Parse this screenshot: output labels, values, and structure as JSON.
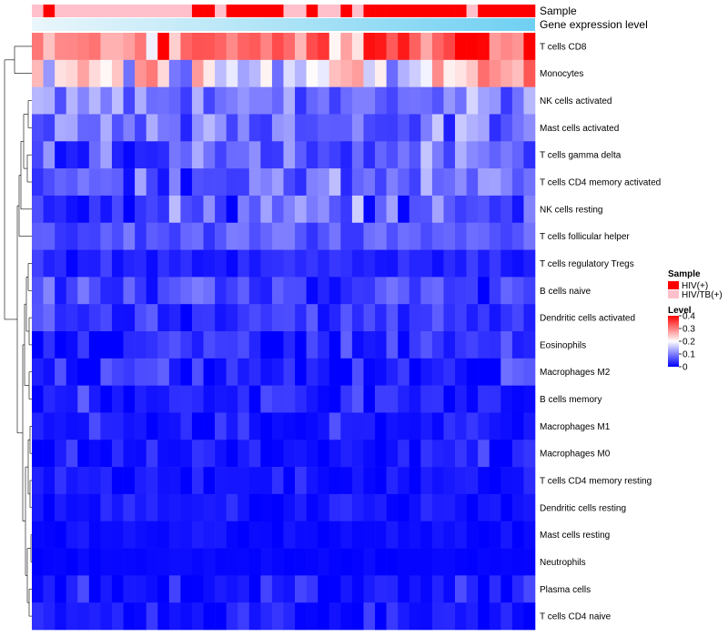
{
  "chart_data": {
    "type": "heatmap",
    "annotation_labels": [
      "Sample",
      "Gene expression level"
    ],
    "rows": [
      "T cells CD8",
      "Monocytes",
      "NK cells activated",
      "Mast cells activated",
      "T cells gamma delta",
      "T cells CD4 memory activated",
      "NK cells resting",
      "T cells follicular helper",
      "T cells regulatory  Tregs",
      "B cells naive",
      "Dendritic cells activated",
      "Eosinophils",
      "Macrophages M2",
      "B cells memory",
      "Macrophages M1",
      "Macrophages M0",
      "T cells CD4 memory resting",
      "Dendritic cells resting",
      "Mast cells resting",
      "Neutrophils",
      "Plasma cells",
      "T cells CD4 naive"
    ],
    "sample_groups": [
      "pink",
      "red",
      "pink",
      "pink",
      "pink",
      "pink",
      "pink",
      "pink",
      "pink",
      "pink",
      "pink",
      "pink",
      "pink",
      "pink",
      "red",
      "red",
      "pink",
      "red",
      "red",
      "red",
      "red",
      "red",
      "pink",
      "pink",
      "red",
      "pink",
      "pink",
      "red",
      "pink",
      "red",
      "red",
      "red",
      "red",
      "red",
      "red",
      "red",
      "red",
      "red",
      "pink",
      "red",
      "red",
      "red",
      "red",
      "red"
    ],
    "row_means": [
      0.3,
      0.22,
      0.1,
      0.09,
      0.08,
      0.08,
      0.07,
      0.07,
      0.03,
      0.05,
      0.04,
      0.03,
      0.03,
      0.03,
      0.02,
      0.02,
      0.015,
      0.015,
      0.01,
      0.005,
      0.02,
      0.015
    ],
    "row_spread": [
      0.09,
      0.1,
      0.05,
      0.05,
      0.06,
      0.05,
      0.06,
      0.03,
      0.02,
      0.04,
      0.03,
      0.04,
      0.04,
      0.035,
      0.03,
      0.03,
      0.02,
      0.02,
      0.01,
      0.005,
      0.03,
      0.025
    ],
    "legend": {
      "sample_title": "Sample",
      "sample_entries": [
        {
          "label": "HIV(+)",
          "color": "#ff0000"
        },
        {
          "label": "HIV/TB(+)",
          "color": "#ffc0cb"
        }
      ],
      "level_title": "Level",
      "level_ticks": [
        {
          "label": "0.4",
          "value": 0.4
        },
        {
          "label": "0.3",
          "value": 0.3
        },
        {
          "label": "0.2",
          "value": 0.2
        },
        {
          "label": "0.1",
          "value": 0.1
        },
        {
          "label": "0",
          "value": 0
        }
      ],
      "range": [
        0,
        0.4
      ]
    },
    "colors": {
      "low": "#0000ff",
      "mid": "#ffffff",
      "high": "#ff0000",
      "hiv": "#ff0000",
      "hivtb": "#ffc0cb",
      "expr_start": "#eaf6fb",
      "expr_end": "#6fd0f2"
    }
  }
}
